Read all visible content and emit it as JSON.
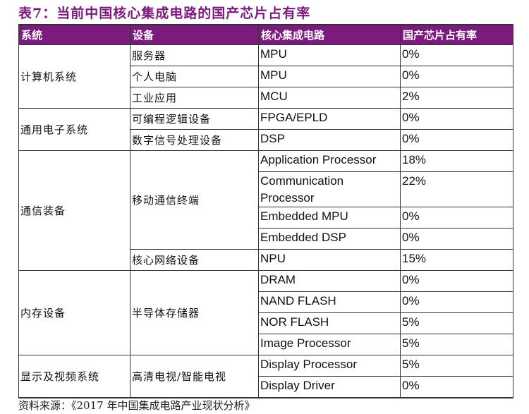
{
  "title": "表7：当前中国核心集成电路的国产芯片占有率",
  "header": [
    "系统",
    "设备",
    "核心集成电路",
    "国产芯片占有率"
  ],
  "groups": [
    {
      "system": "计算机系统",
      "devices": [
        {
          "device": "服务器",
          "chips": [
            {
              "chip": "MPU",
              "share": "0%"
            }
          ]
        },
        {
          "device": "个人电脑",
          "chips": [
            {
              "chip": "MPU",
              "share": "0%"
            }
          ]
        },
        {
          "device": "工业应用",
          "chips": [
            {
              "chip": "MCU",
              "share": "2%"
            }
          ]
        }
      ]
    },
    {
      "system": "通用电子系统",
      "devices": [
        {
          "device": "可编程逻辑设备",
          "chips": [
            {
              "chip": "FPGA/EPLD",
              "share": "0%"
            }
          ]
        },
        {
          "device": "数字信号处理设备",
          "chips": [
            {
              "chip": "DSP",
              "share": "0%"
            }
          ]
        }
      ]
    },
    {
      "system": "通信装备",
      "devices": [
        {
          "device": "移动通信终端",
          "chips": [
            {
              "chip": "Application Processor",
              "share": "18%"
            },
            {
              "chip": "Communication Processor",
              "share": "22%"
            },
            {
              "chip": "Embedded MPU",
              "share": "0%"
            },
            {
              "chip": "Embedded DSP",
              "share": "0%"
            }
          ]
        },
        {
          "device": "核心网络设备",
          "chips": [
            {
              "chip": "NPU",
              "share": "15%"
            }
          ]
        }
      ]
    },
    {
      "system": "内存设备",
      "devices": [
        {
          "device": "半导体存储器",
          "chips": [
            {
              "chip": "DRAM",
              "share": "0%"
            },
            {
              "chip": "NAND FLASH",
              "share": "0%"
            },
            {
              "chip": "NOR FLASH",
              "share": "5%"
            },
            {
              "chip": "Image Processor",
              "share": "5%"
            }
          ]
        }
      ]
    },
    {
      "system": "显示及视频系统",
      "devices": [
        {
          "device": "高清电视/智能电视",
          "chips": [
            {
              "chip": "Display Processor",
              "share": "5%"
            },
            {
              "chip": "Display Driver",
              "share": "0%"
            }
          ]
        }
      ]
    }
  ],
  "source": "资料来源：《2017 年中国集成电路产业现状分析》",
  "colors": {
    "header_bg": "#7b1b7e",
    "title": "#7a1a7c"
  }
}
